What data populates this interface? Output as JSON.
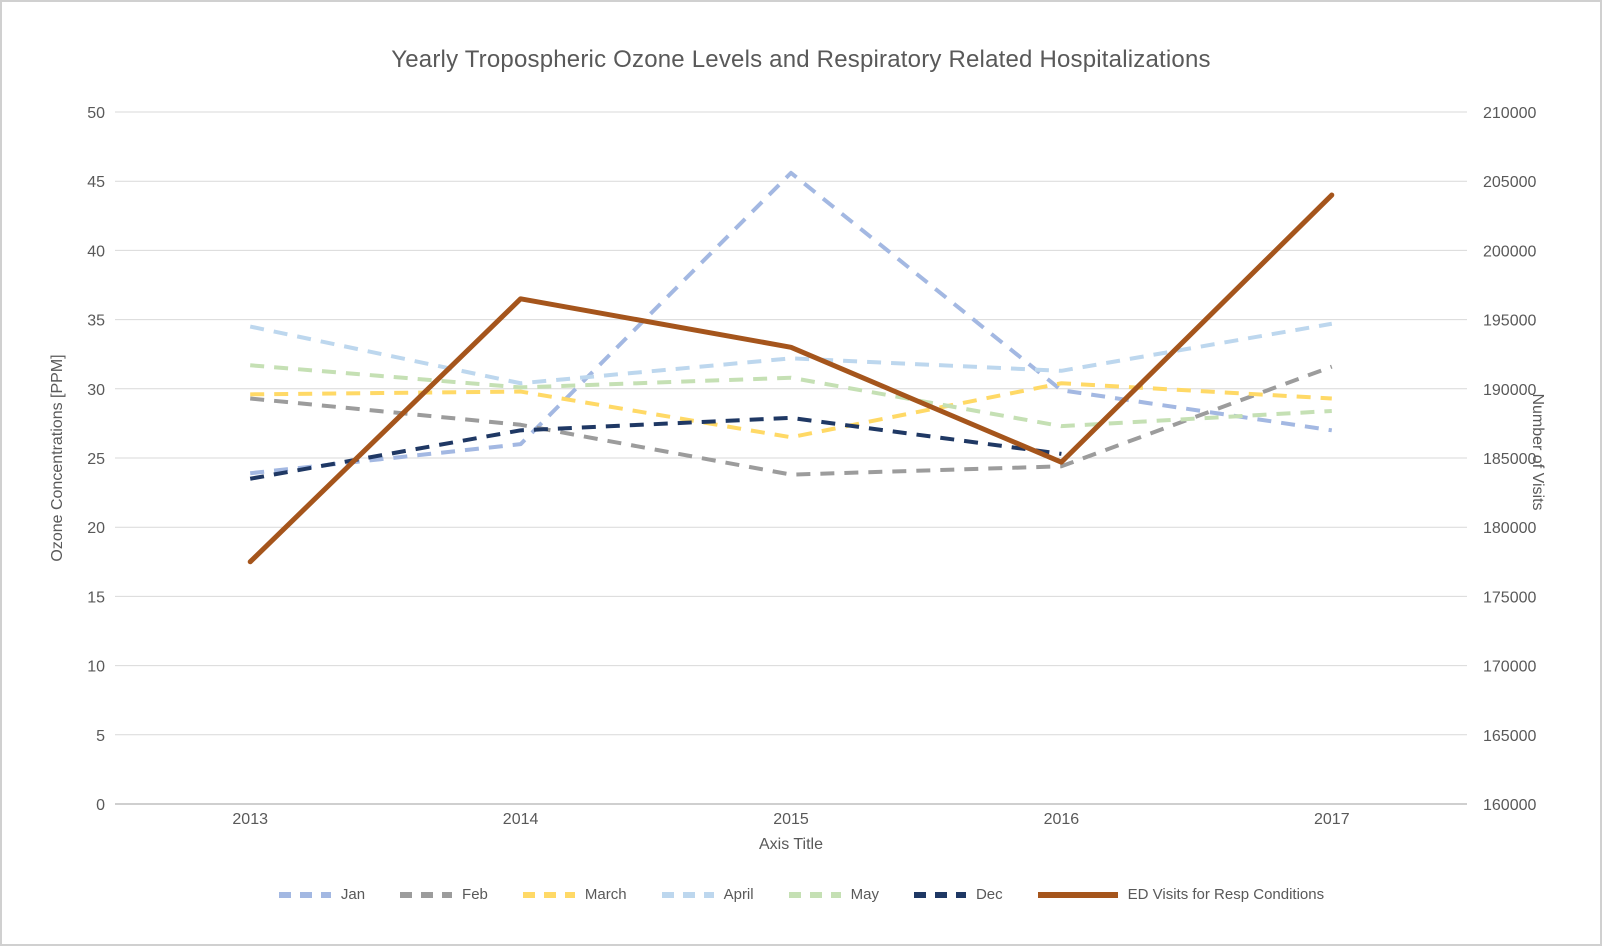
{
  "chart_data": {
    "type": "line",
    "title": "Yearly Tropospheric Ozone Levels and Respiratory Related Hospitalizations",
    "categories": [
      "2013",
      "2014",
      "2015",
      "2016",
      "2017"
    ],
    "x_axis": {
      "title": "Axis Title"
    },
    "left_axis": {
      "title": "Ozone Concentrations [PPM]",
      "min": 0,
      "max": 50,
      "step": 5,
      "ticks": [
        0,
        5,
        10,
        15,
        20,
        25,
        30,
        35,
        40,
        45,
        50
      ]
    },
    "right_axis": {
      "title": "Number of Visits",
      "min": 160000,
      "max": 210000,
      "step": 5000,
      "ticks": [
        160000,
        165000,
        170000,
        175000,
        180000,
        185000,
        190000,
        195000,
        200000,
        205000,
        210000
      ]
    },
    "grid": true,
    "legend_position": "bottom",
    "series": [
      {
        "name": "Jan",
        "axis": "left",
        "style": "dashed",
        "color": "#A3B8E2",
        "values": [
          23.9,
          26.0,
          45.6,
          29.9,
          27.0
        ]
      },
      {
        "name": "Feb",
        "axis": "left",
        "style": "dashed",
        "color": "#9C9C9C",
        "values": [
          29.3,
          27.4,
          23.8,
          24.4,
          31.6
        ]
      },
      {
        "name": "March",
        "axis": "left",
        "style": "dashed",
        "color": "#FFD966",
        "values": [
          29.6,
          29.8,
          26.5,
          30.4,
          29.3
        ]
      },
      {
        "name": "April",
        "axis": "left",
        "style": "dashed",
        "color": "#BDD7EE",
        "values": [
          34.5,
          30.4,
          32.2,
          31.3,
          34.7
        ]
      },
      {
        "name": "May",
        "axis": "left",
        "style": "dashed",
        "color": "#C5E0B4",
        "values": [
          31.7,
          30.1,
          30.8,
          27.3,
          28.4
        ]
      },
      {
        "name": "Dec",
        "axis": "left",
        "style": "dashed",
        "color": "#1F3864",
        "values": [
          23.5,
          27.0,
          27.9,
          25.3,
          null
        ]
      },
      {
        "name": "ED Visits for Resp Conditions",
        "axis": "right",
        "style": "solid",
        "color": "#A5551C",
        "values": [
          177500,
          196500,
          193000,
          184700,
          204000
        ]
      }
    ]
  },
  "colors": {
    "text": "#595959",
    "gridline": "#D9D9D9",
    "axis_line": "#BFBFBF",
    "border": "#D0D0D0",
    "background": "#FFFFFF"
  }
}
